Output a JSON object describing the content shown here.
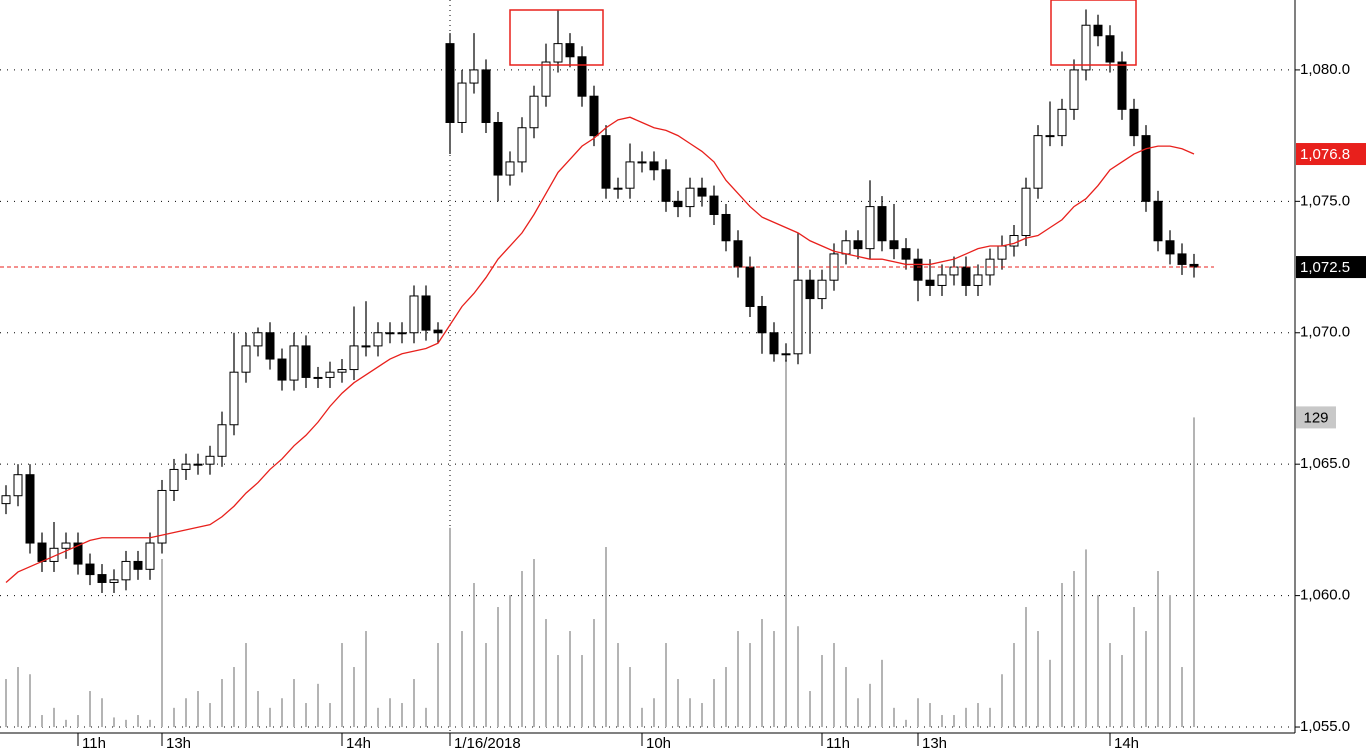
{
  "chart_data": {
    "type": "candlestick",
    "categories": [
      null,
      null,
      null,
      null,
      null,
      null,
      "11h",
      null,
      null,
      null,
      null,
      null,
      null,
      "13h",
      null,
      null,
      null,
      null,
      null,
      null,
      null,
      null,
      null,
      null,
      null,
      null,
      null,
      null,
      "14h",
      null,
      null,
      null,
      null,
      null,
      null,
      null,
      null,
      "1/16/2018",
      null,
      null,
      null,
      null,
      null,
      null,
      null,
      null,
      null,
      null,
      null,
      null,
      null,
      null,
      null,
      "10h",
      null,
      null,
      null,
      null,
      null,
      null,
      null,
      null,
      null,
      null,
      null,
      null,
      null,
      null,
      "11h",
      null,
      null,
      null,
      null,
      null,
      null,
      null,
      "13h",
      null,
      null,
      null,
      null,
      null,
      null,
      null,
      null,
      null,
      null,
      null,
      null,
      null,
      null,
      null,
      "14h",
      null,
      null,
      null,
      null,
      null,
      null,
      null
    ],
    "open": [
      1063.5,
      1063.8,
      1064.6,
      1062.0,
      1061.3,
      1061.8,
      1062.0,
      1061.2,
      1060.8,
      1060.5,
      1060.6,
      1061.3,
      1061.0,
      1062.0,
      1064.0,
      1064.8,
      1065.0,
      1065.0,
      1065.3,
      1066.5,
      1068.5,
      1069.5,
      1070.0,
      1069.0,
      1068.2,
      1069.5,
      1068.3,
      1068.3,
      1068.5,
      1068.6,
      1069.5,
      1069.5,
      1070.0,
      1070.0,
      1070.0,
      1071.4,
      1070.1,
      1081.0,
      1078.0,
      1079.5,
      1080.0,
      1078.0,
      1076.0,
      1076.5,
      1077.8,
      1079.0,
      1080.3,
      1081.0,
      1080.5,
      1079.0,
      1077.5,
      1075.5,
      1075.5,
      1076.5,
      1076.5,
      1076.2,
      1075.0,
      1074.8,
      1075.5,
      1075.2,
      1074.5,
      1073.5,
      1072.5,
      1071.0,
      1070.0,
      1069.2,
      1069.2,
      1072.0,
      1071.3,
      1072.0,
      1073.0,
      1073.5,
      1073.2,
      1074.8,
      1073.5,
      1073.2,
      1072.8,
      1072.0,
      1071.8,
      1072.2,
      1072.5,
      1071.8,
      1072.2,
      1072.8,
      1073.3,
      1073.7,
      1075.5,
      1077.5,
      1077.5,
      1078.5,
      1080.0,
      1081.7,
      1081.3,
      1080.3,
      1078.5,
      1077.5,
      1075.0,
      1073.5,
      1073.0,
      1072.6
    ],
    "high": [
      1064.2,
      1065.0,
      1065.0,
      1062.4,
      1062.8,
      1062.4,
      1062.4,
      1061.6,
      1061.2,
      1061.0,
      1061.7,
      1061.7,
      1062.4,
      1064.4,
      1065.2,
      1065.4,
      1065.4,
      1065.7,
      1067.0,
      1070.0,
      1070.0,
      1070.2,
      1070.4,
      1069.4,
      1070.0,
      1069.9,
      1068.7,
      1068.9,
      1069.0,
      1071.0,
      1071.2,
      1070.4,
      1070.4,
      1070.4,
      1071.8,
      1071.8,
      1070.4,
      1081.4,
      1080.0,
      1081.4,
      1080.4,
      1078.4,
      1076.9,
      1078.2,
      1079.4,
      1081.0,
      1082.3,
      1081.4,
      1080.9,
      1079.4,
      1077.9,
      1075.9,
      1077.2,
      1076.9,
      1076.9,
      1076.6,
      1075.4,
      1075.9,
      1075.9,
      1075.6,
      1074.9,
      1073.9,
      1072.9,
      1071.4,
      1070.4,
      1069.6,
      1073.8,
      1072.4,
      1072.4,
      1073.4,
      1073.9,
      1073.9,
      1075.8,
      1075.2,
      1074.9,
      1073.6,
      1073.2,
      1072.8,
      1072.6,
      1072.9,
      1072.9,
      1072.6,
      1073.2,
      1073.7,
      1074.1,
      1075.9,
      1077.9,
      1078.8,
      1078.9,
      1080.4,
      1082.3,
      1082.1,
      1081.7,
      1080.7,
      1078.9,
      1077.9,
      1075.4,
      1073.9,
      1073.4,
      1073.0
    ],
    "low": [
      1063.1,
      1063.4,
      1061.6,
      1060.9,
      1060.9,
      1061.4,
      1060.8,
      1060.4,
      1060.1,
      1060.1,
      1060.2,
      1060.6,
      1060.6,
      1061.6,
      1063.6,
      1064.4,
      1064.6,
      1064.6,
      1064.9,
      1066.1,
      1068.1,
      1069.1,
      1068.6,
      1067.8,
      1067.8,
      1067.9,
      1067.9,
      1067.9,
      1068.1,
      1068.2,
      1069.1,
      1069.1,
      1069.6,
      1069.6,
      1069.6,
      1069.7,
      1069.6,
      1076.8,
      1077.6,
      1079.1,
      1077.6,
      1075.0,
      1075.6,
      1076.1,
      1077.4,
      1078.6,
      1079.9,
      1080.1,
      1078.6,
      1077.1,
      1075.1,
      1075.1,
      1075.1,
      1076.1,
      1075.8,
      1074.6,
      1074.4,
      1074.4,
      1074.8,
      1074.1,
      1073.1,
      1072.1,
      1070.6,
      1069.2,
      1068.9,
      1068.9,
      1068.8,
      1069.2,
      1070.9,
      1071.6,
      1072.6,
      1072.8,
      1072.8,
      1073.1,
      1072.8,
      1072.4,
      1071.2,
      1071.4,
      1071.4,
      1071.8,
      1071.4,
      1071.4,
      1071.8,
      1072.4,
      1072.9,
      1073.3,
      1075.1,
      1077.1,
      1077.1,
      1078.1,
      1079.6,
      1080.9,
      1079.9,
      1078.1,
      1077.1,
      1074.6,
      1073.1,
      1072.6,
      1072.2,
      1072.1
    ],
    "close": [
      1063.8,
      1064.6,
      1062.0,
      1061.3,
      1061.8,
      1062.0,
      1061.2,
      1060.8,
      1060.5,
      1060.6,
      1061.3,
      1061.0,
      1062.0,
      1064.0,
      1064.8,
      1065.0,
      1065.0,
      1065.3,
      1066.5,
      1068.5,
      1069.5,
      1070.0,
      1069.0,
      1068.2,
      1069.5,
      1068.3,
      1068.3,
      1068.5,
      1068.6,
      1069.5,
      1069.5,
      1070.0,
      1070.0,
      1070.0,
      1071.4,
      1070.1,
      1070.0,
      1078.0,
      1079.5,
      1080.0,
      1078.0,
      1076.0,
      1076.5,
      1077.8,
      1079.0,
      1080.3,
      1081.0,
      1080.5,
      1079.0,
      1077.5,
      1075.5,
      1075.5,
      1076.5,
      1076.5,
      1076.2,
      1075.0,
      1074.8,
      1075.5,
      1075.2,
      1074.5,
      1073.5,
      1072.5,
      1071.0,
      1070.0,
      1069.2,
      1069.2,
      1072.0,
      1071.3,
      1072.0,
      1073.0,
      1073.5,
      1073.2,
      1074.8,
      1073.5,
      1073.2,
      1072.8,
      1072.0,
      1071.8,
      1072.2,
      1072.5,
      1071.8,
      1072.2,
      1072.8,
      1073.3,
      1073.7,
      1075.5,
      1077.5,
      1077.5,
      1078.5,
      1080.0,
      1081.7,
      1081.3,
      1080.3,
      1078.5,
      1077.5,
      1075.0,
      1073.5,
      1073.0,
      1072.6,
      1072.5
    ],
    "volume": [
      20,
      25,
      22,
      5,
      8,
      3,
      5,
      15,
      12,
      4,
      3,
      5,
      3,
      70,
      8,
      12,
      15,
      10,
      20,
      25,
      35,
      15,
      8,
      12,
      20,
      10,
      18,
      10,
      35,
      25,
      40,
      8,
      12,
      10,
      20,
      8,
      35,
      83,
      40,
      60,
      35,
      50,
      55,
      65,
      70,
      45,
      30,
      40,
      30,
      45,
      75,
      35,
      25,
      8,
      12,
      35,
      20,
      12,
      10,
      20,
      25,
      40,
      35,
      45,
      40,
      153,
      42,
      15,
      30,
      35,
      25,
      12,
      18,
      28,
      8,
      3,
      12,
      10,
      5,
      5,
      8,
      10,
      8,
      22,
      35,
      50,
      40,
      28,
      60,
      65,
      74,
      55,
      35,
      30,
      50,
      40,
      65,
      55,
      25,
      129
    ],
    "ma": [
      1060.5,
      1060.9,
      1061.1,
      1061.3,
      1061.5,
      1061.7,
      1061.9,
      1062.1,
      1062.2,
      1062.2,
      1062.2,
      1062.2,
      1062.2,
      1062.3,
      1062.4,
      1062.5,
      1062.6,
      1062.7,
      1063.0,
      1063.4,
      1063.9,
      1064.3,
      1064.8,
      1065.2,
      1065.7,
      1066.1,
      1066.6,
      1067.2,
      1067.7,
      1068.1,
      1068.4,
      1068.7,
      1069.0,
      1069.2,
      1069.3,
      1069.4,
      1069.6,
      1070.3,
      1071.0,
      1071.5,
      1072.1,
      1072.8,
      1073.3,
      1073.8,
      1074.5,
      1075.3,
      1076.1,
      1076.6,
      1077.1,
      1077.4,
      1077.8,
      1078.1,
      1078.2,
      1078.0,
      1077.8,
      1077.7,
      1077.5,
      1077.2,
      1076.9,
      1076.5,
      1075.8,
      1075.3,
      1074.8,
      1074.4,
      1074.2,
      1074.0,
      1073.8,
      1073.5,
      1073.3,
      1073.1,
      1073.0,
      1072.9,
      1072.8,
      1072.8,
      1072.7,
      1072.6,
      1072.6,
      1072.6,
      1072.7,
      1072.8,
      1073.0,
      1073.2,
      1073.3,
      1073.3,
      1073.4,
      1073.6,
      1073.7,
      1074.0,
      1074.3,
      1074.8,
      1075.1,
      1075.6,
      1076.2,
      1076.5,
      1076.8,
      1077.0,
      1077.1,
      1077.1,
      1077.0,
      1076.8
    ],
    "ma_color": "#e8201c",
    "volume_color": "#b4b4b4",
    "up_color": "#ffffff",
    "down_color": "#000000",
    "ylim": [
      1054.05,
      1082.66
    ],
    "yticks": [
      {
        "value": 1055,
        "label": "1,055.0"
      },
      {
        "value": 1060,
        "label": "1,060.0"
      },
      {
        "value": 1065,
        "label": "1,065.0"
      },
      {
        "value": 1070,
        "label": "1,070.0"
      },
      {
        "value": 1075,
        "label": "1,075.0"
      },
      {
        "value": 1080,
        "label": "1,080.0"
      }
    ],
    "y2lim": [
      -10.4,
      302.9
    ],
    "grid": true,
    "price_markers": [
      {
        "value": 1076.8,
        "label": "1,076.8",
        "color": "#e8201c"
      },
      {
        "value": 1072.5,
        "label": "1,072.5",
        "color": "#000000"
      }
    ]
  }
}
